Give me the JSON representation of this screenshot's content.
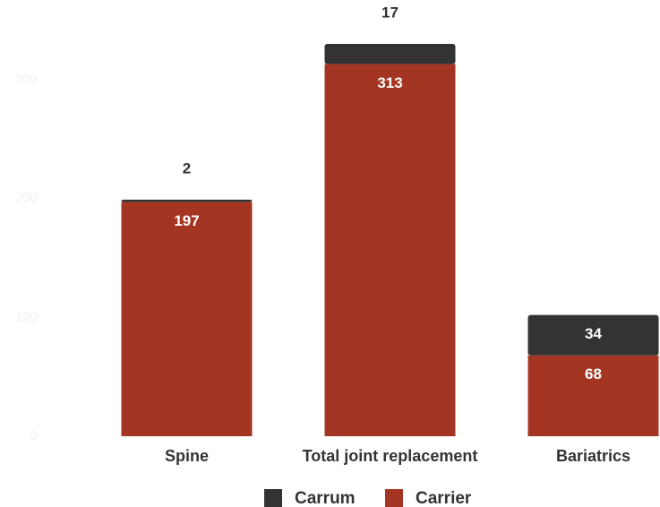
{
  "chart_data": {
    "type": "stacked_bar",
    "categories": [
      "Spine",
      "Total joint replacement",
      "Bariatrics"
    ],
    "series": [
      {
        "name": "Carrum",
        "color": "#333333",
        "values": [
          2,
          17,
          34
        ]
      },
      {
        "name": "Carrier",
        "color": "#a33522",
        "values": [
          197,
          313,
          68
        ]
      }
    ],
    "ylim": [
      0,
      350
    ],
    "yticks": [
      0,
      100,
      200,
      300
    ],
    "grid": false,
    "legend": "bottom"
  }
}
